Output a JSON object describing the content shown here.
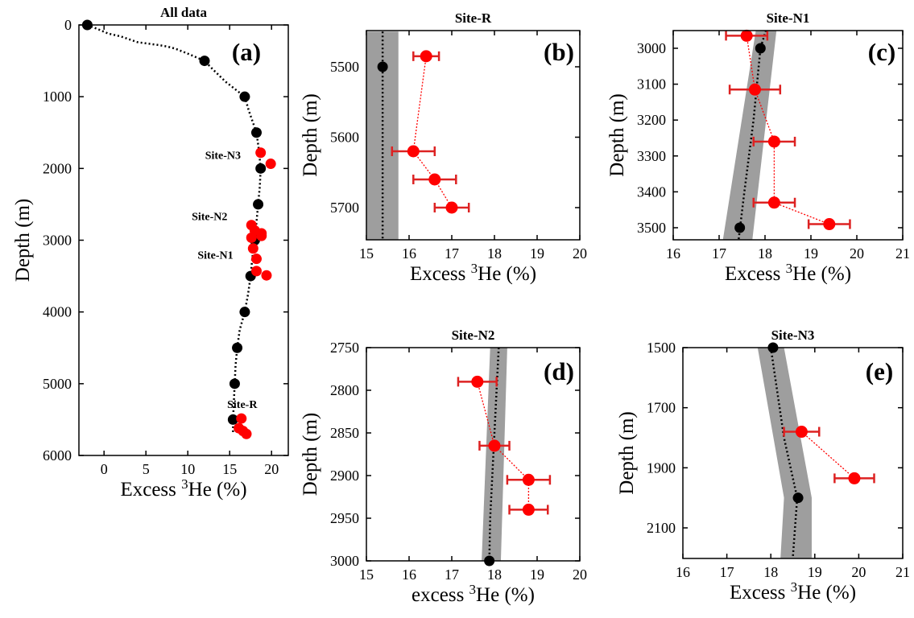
{
  "colors": {
    "profile": "#000000",
    "measured": "#ff0000",
    "error_bar": "#dd2222",
    "band": "#9e9e9e"
  },
  "chart_data": [
    {
      "type": "scatter",
      "panel": "(a)",
      "title": "All data",
      "xlabel": "Excess ³He (%)",
      "ylabel": "Depth (m)",
      "xlim": [
        -3,
        22
      ],
      "ylim": [
        0,
        6000
      ],
      "y_inverted": true,
      "xticks": [
        0,
        5,
        10,
        15,
        20
      ],
      "yticks": [
        0,
        1000,
        2000,
        3000,
        4000,
        5000,
        6000
      ],
      "series": [
        {
          "style": "profile-points",
          "points": [
            [
              -2,
              0
            ],
            [
              12,
              500
            ],
            [
              16.8,
              1000
            ],
            [
              18.2,
              1500
            ],
            [
              18.7,
              2000
            ],
            [
              18.4,
              2500
            ],
            [
              18,
              3000
            ],
            [
              17.5,
              3500
            ],
            [
              16.8,
              4000
            ],
            [
              15.9,
              4500
            ],
            [
              15.6,
              5000
            ],
            [
              15.4,
              5500
            ]
          ]
        },
        {
          "style": "profile-line",
          "points": [
            [
              -2,
              0
            ],
            [
              -0.5,
              70
            ],
            [
              0.5,
              120
            ],
            [
              2,
              160
            ],
            [
              4,
              240
            ],
            [
              6.5,
              280
            ],
            [
              7.5,
              300
            ],
            [
              8.5,
              330
            ],
            [
              10,
              400
            ],
            [
              12,
              500
            ],
            [
              13,
              620
            ],
            [
              14.5,
              790
            ],
            [
              16.8,
              1000
            ],
            [
              17.3,
              1200
            ],
            [
              18.2,
              1500
            ],
            [
              18.5,
              1750
            ],
            [
              18.7,
              2000
            ],
            [
              18.6,
              2250
            ],
            [
              18.4,
              2500
            ],
            [
              18.2,
              2750
            ],
            [
              18,
              3000
            ],
            [
              17.7,
              3250
            ],
            [
              17.5,
              3500
            ],
            [
              17.2,
              3750
            ],
            [
              16.8,
              4000
            ],
            [
              16.2,
              4250
            ],
            [
              15.9,
              4500
            ],
            [
              15.7,
              4750
            ],
            [
              15.6,
              5000
            ],
            [
              15.5,
              5250
            ],
            [
              15.4,
              5500
            ],
            [
              15.4,
              5700
            ]
          ]
        },
        {
          "style": "measured",
          "points": [
            [
              18.7,
              1780
            ],
            [
              19.9,
              1935
            ],
            [
              17.6,
              2790
            ],
            [
              18.0,
              2865
            ],
            [
              18.8,
              2905
            ],
            [
              18.8,
              2940
            ],
            [
              17.6,
              2965
            ],
            [
              17.8,
              3115
            ],
            [
              18.2,
              3260
            ],
            [
              18.2,
              3430
            ],
            [
              19.4,
              3490
            ],
            [
              16.4,
              5485
            ],
            [
              16.1,
              5620
            ],
            [
              16.6,
              5660
            ],
            [
              17.0,
              5700
            ]
          ]
        }
      ],
      "annotations": [
        "Site-N3",
        "Site-N2",
        "Site-N1",
        "Site-R"
      ]
    },
    {
      "type": "scatter",
      "panel": "(b)",
      "title": "Site-R",
      "xlabel": "Excess ³He (%)",
      "ylabel": "Depth (m)",
      "xlim": [
        15,
        20
      ],
      "ylim": [
        5450,
        5750
      ],
      "y_inverted": true,
      "xticks": [
        15,
        16,
        17,
        18,
        19,
        20
      ],
      "yticks": [
        5500,
        5600,
        5700
      ],
      "band": [
        [
          15.0,
          5450
        ],
        [
          15.75,
          5450
        ],
        [
          15.75,
          5750
        ],
        [
          15.0,
          5750
        ]
      ],
      "profile_line": [
        [
          15.38,
          5450
        ],
        [
          15.38,
          5750
        ]
      ],
      "profile_points": [
        [
          15.38,
          5500
        ]
      ],
      "measured": [
        [
          16.4,
          5485,
          0.3
        ],
        [
          16.1,
          5620,
          0.5
        ],
        [
          16.6,
          5660,
          0.5
        ],
        [
          17.0,
          5700,
          0.4
        ]
      ]
    },
    {
      "type": "scatter",
      "panel": "(c)",
      "title": "Site-N1",
      "xlabel": "Excess ³He (%)",
      "ylabel": "Depth (m)",
      "xlim": [
        16,
        21
      ],
      "ylim": [
        2950,
        3560
      ],
      "y_inverted": true,
      "xticks": [
        16,
        17,
        18,
        19,
        20,
        21
      ],
      "yticks": [
        3000,
        3100,
        3200,
        3300,
        3400,
        3500
      ],
      "band": [
        [
          17.8,
          2950
        ],
        [
          18.25,
          2950
        ],
        [
          17.7,
          3560
        ],
        [
          17.05,
          3560
        ]
      ],
      "profile_line": [
        [
          18.02,
          2950
        ],
        [
          17.9,
          3000
        ],
        [
          17.75,
          3200
        ],
        [
          17.55,
          3400
        ],
        [
          17.4,
          3560
        ]
      ],
      "profile_points": [
        [
          17.9,
          3000
        ],
        [
          17.45,
          3500
        ]
      ],
      "measured": [
        [
          17.6,
          2965,
          0.45
        ],
        [
          17.78,
          3115,
          0.55
        ],
        [
          18.2,
          3260,
          0.45
        ],
        [
          18.2,
          3430,
          0.45
        ],
        [
          19.4,
          3490,
          0.45
        ]
      ]
    },
    {
      "type": "scatter",
      "panel": "(d)",
      "title": "Site-N2",
      "xlabel": "excess ³He (%)",
      "ylabel": "Depth (m)",
      "xlim": [
        15,
        20
      ],
      "ylim": [
        2750,
        3000
      ],
      "y_inverted": true,
      "xticks": [
        15,
        16,
        17,
        18,
        19,
        20
      ],
      "yticks": [
        2750,
        2800,
        2850,
        2900,
        2950,
        3000
      ],
      "band": [
        [
          17.9,
          2750
        ],
        [
          18.3,
          2750
        ],
        [
          18.15,
          3000
        ],
        [
          17.7,
          3000
        ]
      ],
      "profile_line": [
        [
          18.1,
          2750
        ],
        [
          18.05,
          2800
        ],
        [
          18.0,
          2850
        ],
        [
          17.95,
          2900
        ],
        [
          17.9,
          2950
        ],
        [
          17.88,
          3000
        ]
      ],
      "profile_points": [
        [
          17.88,
          3000
        ]
      ],
      "measured": [
        [
          17.6,
          2790,
          0.45
        ],
        [
          18.0,
          2865,
          0.35
        ],
        [
          18.8,
          2905,
          0.5
        ],
        [
          18.8,
          2940,
          0.45
        ]
      ]
    },
    {
      "type": "scatter",
      "panel": "(e)",
      "title": "Site-N3",
      "xlabel": "Excess ³He (%)",
      "ylabel": "Depth (m)",
      "xlim": [
        16,
        21
      ],
      "ylim": [
        1500,
        2200
      ],
      "y_inverted": true,
      "xticks": [
        16,
        17,
        18,
        19,
        20,
        21
      ],
      "yticks": [
        1500,
        1700,
        1900,
        2100
      ],
      "band": [
        [
          17.7,
          1500
        ],
        [
          18.3,
          1500
        ],
        [
          18.93,
          2000
        ],
        [
          18.93,
          2200
        ],
        [
          18.22,
          2200
        ],
        [
          18.3,
          2000
        ]
      ],
      "profile_line": [
        [
          18.0,
          1500
        ],
        [
          18.1,
          1600
        ],
        [
          18.3,
          1800
        ],
        [
          18.6,
          2000
        ],
        [
          18.55,
          2100
        ],
        [
          18.5,
          2200
        ]
      ],
      "profile_points": [
        [
          18.05,
          1500
        ],
        [
          18.62,
          2000
        ]
      ],
      "measured": [
        [
          18.7,
          1780,
          0.4
        ],
        [
          19.9,
          1935,
          0.45
        ]
      ]
    }
  ]
}
